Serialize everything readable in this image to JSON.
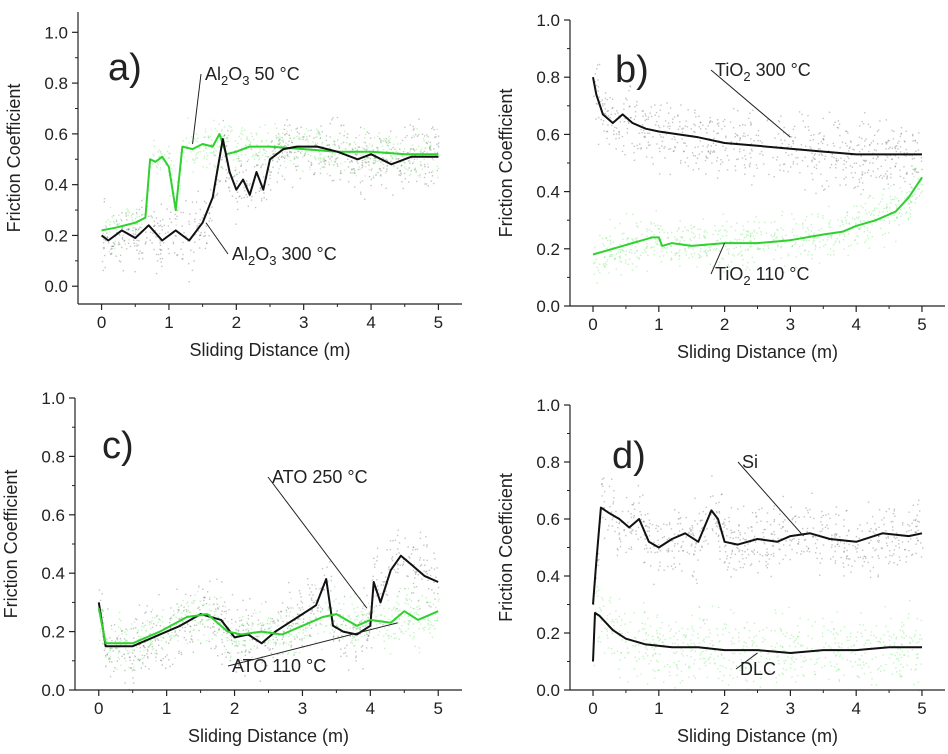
{
  "colors": {
    "black_series": "#111111",
    "green_series": "#2fd12f",
    "black_noise": "#555555",
    "green_noise": "#55e055",
    "axis": "#222222"
  },
  "chart_data": [
    {
      "panel": "a)",
      "type": "line",
      "xlabel": "Sliding Distance (m)",
      "ylabel": "Friction Coefficient",
      "xlim": [
        -0.35,
        5.35
      ],
      "ylim": [
        -0.07,
        1.08
      ],
      "xticks": [
        "0",
        "1",
        "2",
        "3",
        "4",
        "5"
      ],
      "yticks": [
        "0.0",
        "0.2",
        "0.4",
        "0.6",
        "0.8",
        "1.0"
      ],
      "grid": false,
      "series": [
        {
          "name": "Al2O3 50 °C",
          "label_main": "Al",
          "label_sub1": "2",
          "label_mid": "O",
          "label_sub2": "3",
          "label_tail": " 50 °C",
          "color": "green",
          "x": [
            0,
            0.2,
            0.5,
            0.65,
            0.72,
            0.8,
            0.9,
            1.0,
            1.1,
            1.2,
            1.35,
            1.5,
            1.65,
            1.75,
            1.85,
            2.0,
            2.2,
            2.5,
            3.0,
            3.5,
            4.0,
            4.5,
            5.0
          ],
          "y": [
            0.22,
            0.23,
            0.25,
            0.27,
            0.5,
            0.49,
            0.51,
            0.47,
            0.3,
            0.55,
            0.54,
            0.56,
            0.55,
            0.6,
            0.52,
            0.53,
            0.55,
            0.55,
            0.54,
            0.53,
            0.53,
            0.52,
            0.52
          ]
        },
        {
          "name": "Al2O3 300 °C",
          "label_main": "Al",
          "label_sub1": "2",
          "label_mid": "O",
          "label_sub2": "3",
          "label_tail": " 300 °C",
          "color": "black",
          "x": [
            0,
            0.1,
            0.3,
            0.5,
            0.7,
            0.9,
            1.1,
            1.3,
            1.5,
            1.65,
            1.8,
            1.9,
            2.0,
            2.1,
            2.2,
            2.3,
            2.4,
            2.5,
            2.7,
            2.9,
            3.2,
            3.5,
            3.8,
            4.0,
            4.3,
            4.6,
            5.0
          ],
          "y": [
            0.2,
            0.18,
            0.22,
            0.19,
            0.24,
            0.18,
            0.22,
            0.18,
            0.25,
            0.35,
            0.58,
            0.45,
            0.38,
            0.42,
            0.36,
            0.45,
            0.38,
            0.5,
            0.54,
            0.55,
            0.55,
            0.53,
            0.5,
            0.52,
            0.48,
            0.51,
            0.51
          ]
        }
      ]
    },
    {
      "panel": "b)",
      "type": "line",
      "xlabel": "Sliding Distance (m)",
      "ylabel": "Friction Coefficient",
      "xlim": [
        -0.35,
        5.35
      ],
      "ylim": [
        0.0,
        1.0
      ],
      "xticks": [
        "0",
        "1",
        "2",
        "3",
        "4",
        "5"
      ],
      "yticks": [
        "0.0",
        "0.2",
        "0.4",
        "0.6",
        "0.8",
        "1.0"
      ],
      "grid": false,
      "series": [
        {
          "name": "TiO2 300 °C",
          "label_main": "TiO",
          "label_sub1": "2",
          "label_mid": "",
          "label_sub2": "",
          "label_tail": " 300 °C",
          "color": "black",
          "x": [
            0,
            0.05,
            0.15,
            0.3,
            0.45,
            0.6,
            0.8,
            1.0,
            1.3,
            1.6,
            2.0,
            2.5,
            3.0,
            3.5,
            4.0,
            4.5,
            5.0
          ],
          "y": [
            0.8,
            0.74,
            0.67,
            0.64,
            0.67,
            0.64,
            0.62,
            0.61,
            0.6,
            0.59,
            0.57,
            0.56,
            0.55,
            0.54,
            0.53,
            0.53,
            0.53
          ]
        },
        {
          "name": "TiO2 110 °C",
          "label_main": "TiO",
          "label_sub1": "2",
          "label_mid": "",
          "label_sub2": "",
          "label_tail": " 110 °C",
          "color": "green",
          "x": [
            0,
            0.3,
            0.6,
            0.9,
            1.0,
            1.05,
            1.2,
            1.5,
            2.0,
            2.5,
            3.0,
            3.5,
            3.8,
            4.0,
            4.3,
            4.6,
            4.8,
            5.0
          ],
          "y": [
            0.18,
            0.2,
            0.22,
            0.24,
            0.24,
            0.21,
            0.22,
            0.21,
            0.22,
            0.22,
            0.23,
            0.25,
            0.26,
            0.28,
            0.3,
            0.33,
            0.38,
            0.45
          ]
        }
      ]
    },
    {
      "panel": "c)",
      "type": "line",
      "xlabel": "Sliding Distance (m)",
      "ylabel": "Friction Coefficient",
      "xlim": [
        -0.35,
        5.35
      ],
      "ylim": [
        0.0,
        1.0
      ],
      "xticks": [
        "0",
        "1",
        "2",
        "3",
        "4",
        "5"
      ],
      "yticks": [
        "0.0",
        "0.2",
        "0.4",
        "0.6",
        "0.8",
        "1.0"
      ],
      "grid": false,
      "series": [
        {
          "name": "ATO 250 °C",
          "label_main": "ATO 250 °C",
          "label_sub1": "",
          "label_mid": "",
          "label_sub2": "",
          "label_tail": "",
          "color": "black",
          "x": [
            0,
            0.1,
            0.5,
            0.8,
            1.2,
            1.5,
            1.8,
            2.0,
            2.2,
            2.4,
            2.6,
            2.8,
            3.0,
            3.2,
            3.35,
            3.45,
            3.6,
            3.8,
            4.0,
            4.05,
            4.15,
            4.3,
            4.45,
            4.6,
            4.8,
            5.0
          ],
          "y": [
            0.3,
            0.15,
            0.15,
            0.18,
            0.22,
            0.26,
            0.24,
            0.18,
            0.19,
            0.16,
            0.2,
            0.23,
            0.26,
            0.29,
            0.38,
            0.22,
            0.2,
            0.19,
            0.22,
            0.37,
            0.3,
            0.41,
            0.46,
            0.43,
            0.39,
            0.37
          ]
        },
        {
          "name": "ATO 110 °C",
          "label_main": "ATO 110 °C",
          "label_sub1": "",
          "label_mid": "",
          "label_sub2": "",
          "label_tail": "",
          "color": "green",
          "x": [
            0,
            0.1,
            0.5,
            0.9,
            1.3,
            1.6,
            1.9,
            2.1,
            2.4,
            2.7,
            3.0,
            3.3,
            3.5,
            3.8,
            4.0,
            4.3,
            4.5,
            4.7,
            5.0
          ],
          "y": [
            0.28,
            0.16,
            0.16,
            0.2,
            0.25,
            0.26,
            0.2,
            0.19,
            0.2,
            0.19,
            0.22,
            0.25,
            0.26,
            0.22,
            0.24,
            0.23,
            0.27,
            0.24,
            0.27
          ]
        }
      ]
    },
    {
      "panel": "d)",
      "type": "line",
      "xlabel": "Sliding Distance (m)",
      "ylabel": "Friction Coefficient",
      "xlim": [
        -0.35,
        5.35
      ],
      "ylim": [
        0.0,
        1.0
      ],
      "xticks": [
        "0",
        "1",
        "2",
        "3",
        "4",
        "5"
      ],
      "yticks": [
        "0.0",
        "0.2",
        "0.4",
        "0.6",
        "0.8",
        "1.0"
      ],
      "grid": false,
      "series": [
        {
          "name": "Si",
          "label_main": "Si",
          "label_sub1": "",
          "label_mid": "",
          "label_sub2": "",
          "label_tail": "",
          "color": "black",
          "x": [
            0,
            0.05,
            0.12,
            0.25,
            0.4,
            0.55,
            0.7,
            0.85,
            1.0,
            1.2,
            1.4,
            1.6,
            1.8,
            1.9,
            2.0,
            2.2,
            2.5,
            2.8,
            3.0,
            3.3,
            3.6,
            4.0,
            4.4,
            4.8,
            5.0
          ],
          "y": [
            0.3,
            0.45,
            0.64,
            0.62,
            0.6,
            0.57,
            0.6,
            0.52,
            0.5,
            0.53,
            0.55,
            0.52,
            0.63,
            0.6,
            0.52,
            0.51,
            0.53,
            0.52,
            0.54,
            0.55,
            0.53,
            0.52,
            0.55,
            0.54,
            0.55
          ]
        },
        {
          "name": "DLC",
          "label_main": "DLC",
          "label_sub1": "",
          "label_mid": "",
          "label_sub2": "",
          "label_tail": "",
          "color": "black",
          "x": [
            0,
            0.03,
            0.1,
            0.3,
            0.5,
            0.8,
            1.2,
            1.6,
            2.0,
            2.5,
            3.0,
            3.5,
            4.0,
            4.5,
            5.0
          ],
          "y": [
            0.1,
            0.27,
            0.26,
            0.21,
            0.18,
            0.16,
            0.15,
            0.15,
            0.14,
            0.14,
            0.13,
            0.14,
            0.14,
            0.15,
            0.15
          ],
          "noise_color": "green"
        }
      ]
    }
  ]
}
